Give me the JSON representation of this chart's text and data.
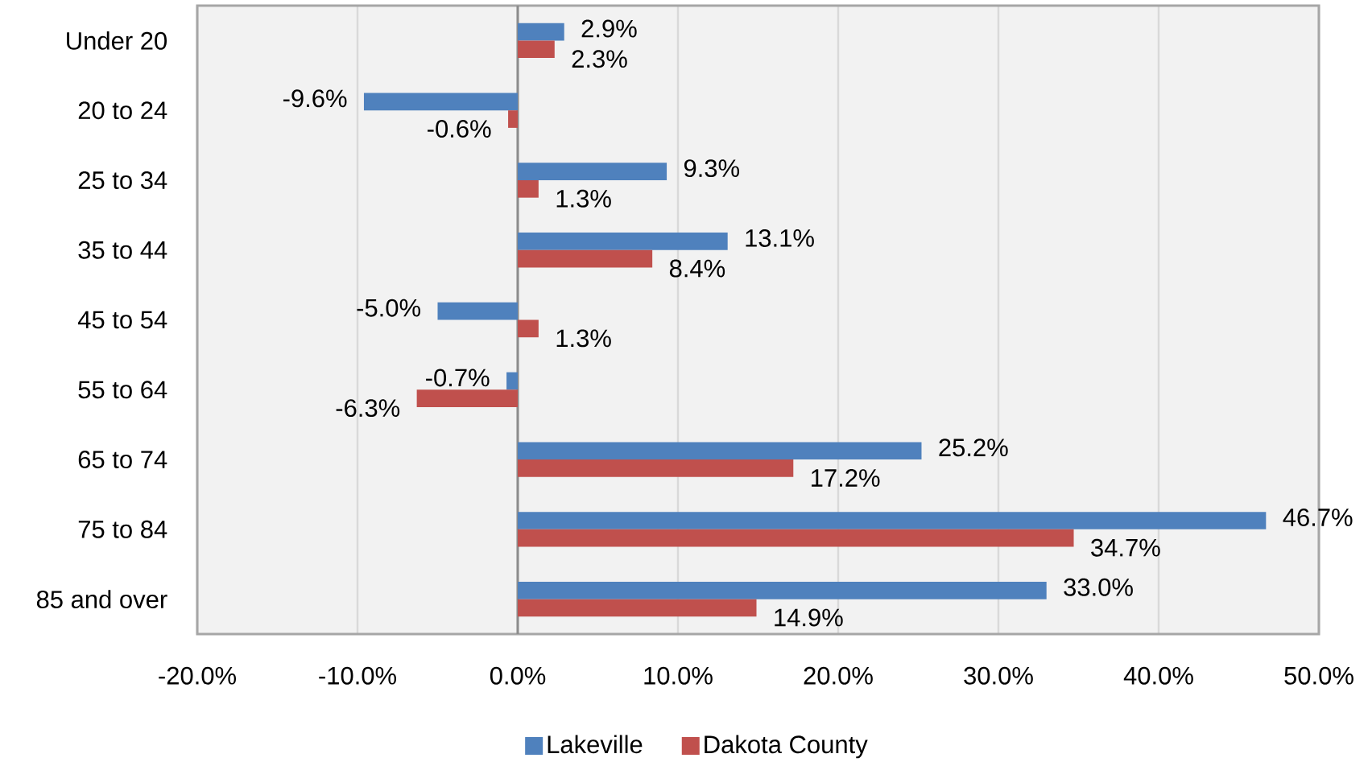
{
  "chart_data": {
    "type": "bar",
    "orientation": "horizontal",
    "categories": [
      "Under 20",
      "20 to 24",
      "25 to 34",
      "35 to 44",
      "45 to 54",
      "55 to 64",
      "65 to 74",
      "75 to 84",
      "85 and over"
    ],
    "series": [
      {
        "name": "Lakeville",
        "color": "#4f81bd",
        "values": [
          2.9,
          -9.6,
          9.3,
          13.1,
          -5.0,
          -0.7,
          25.2,
          46.7,
          33.0
        ],
        "value_labels": [
          "2.9%",
          "-9.6%",
          "9.3%",
          "13.1%",
          "-5.0%",
          "-0.7%",
          "25.2%",
          "46.7%",
          "33.0%"
        ]
      },
      {
        "name": "Dakota County",
        "color": "#c0504d",
        "values": [
          2.3,
          -0.6,
          1.3,
          8.4,
          1.3,
          -6.3,
          17.2,
          34.7,
          14.9
        ],
        "value_labels": [
          "2.3%",
          "-0.6%",
          "1.3%",
          "8.4%",
          "1.3%",
          "-6.3%",
          "17.2%",
          "34.7%",
          "14.9%"
        ]
      }
    ],
    "xlim": [
      -20,
      50
    ],
    "xticks": [
      {
        "value": -20,
        "label": "-20.0%"
      },
      {
        "value": -10,
        "label": "-10.0%"
      },
      {
        "value": 0,
        "label": "0.0%"
      },
      {
        "value": 10,
        "label": "10.0%"
      },
      {
        "value": 20,
        "label": "20.0%"
      },
      {
        "value": 30,
        "label": "30.0%"
      },
      {
        "value": 40,
        "label": "40.0%"
      },
      {
        "value": 50,
        "label": "50.0%"
      }
    ],
    "grid": "x",
    "legend": "bottom"
  }
}
